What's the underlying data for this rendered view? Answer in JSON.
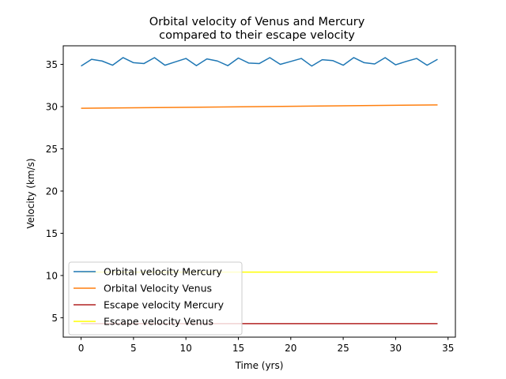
{
  "chart_data": {
    "type": "line",
    "title": [
      "Orbital velocity of Venus and Mercury",
      "compared to their escape velocity"
    ],
    "xlabel": "Time (yrs)",
    "ylabel": "Velocity (km/s)",
    "xlim": [
      -1.7,
      35.7
    ],
    "ylim": [
      2.7,
      37.2
    ],
    "xticks": [
      0,
      5,
      10,
      15,
      20,
      25,
      30,
      35
    ],
    "yticks": [
      5,
      10,
      15,
      20,
      25,
      30,
      35
    ],
    "grid": false,
    "legend_position": "lower-left",
    "series": [
      {
        "name": "Orbital velocity Mercury",
        "color": "#1f77b4",
        "x": [
          0,
          1,
          2,
          3,
          4,
          5,
          6,
          7,
          8,
          9,
          10,
          11,
          12,
          13,
          14,
          15,
          16,
          17,
          18,
          19,
          20,
          21,
          22,
          23,
          24,
          25,
          26,
          27,
          28,
          29,
          30,
          31,
          32,
          33,
          34
        ],
        "y": [
          34.8,
          35.6,
          35.4,
          34.9,
          35.8,
          35.2,
          35.1,
          35.8,
          34.9,
          35.3,
          35.7,
          34.85,
          35.65,
          35.4,
          34.85,
          35.75,
          35.15,
          35.1,
          35.8,
          35.0,
          35.35,
          35.7,
          34.8,
          35.55,
          35.45,
          34.9,
          35.8,
          35.2,
          35.05,
          35.8,
          34.95,
          35.35,
          35.7,
          34.9,
          35.6
        ]
      },
      {
        "name": "Orbital Velocity Venus",
        "color": "#ff7f0e",
        "x": [
          0,
          34
        ],
        "y": [
          29.8,
          30.2
        ]
      },
      {
        "name": "Escape velocity Mercury",
        "color": "#b22222",
        "x": [
          0,
          34
        ],
        "y": [
          4.3,
          4.3
        ]
      },
      {
        "name": "Escape velocity Venus",
        "color": "#ffff00",
        "x": [
          0,
          34
        ],
        "y": [
          10.4,
          10.4
        ]
      }
    ]
  }
}
